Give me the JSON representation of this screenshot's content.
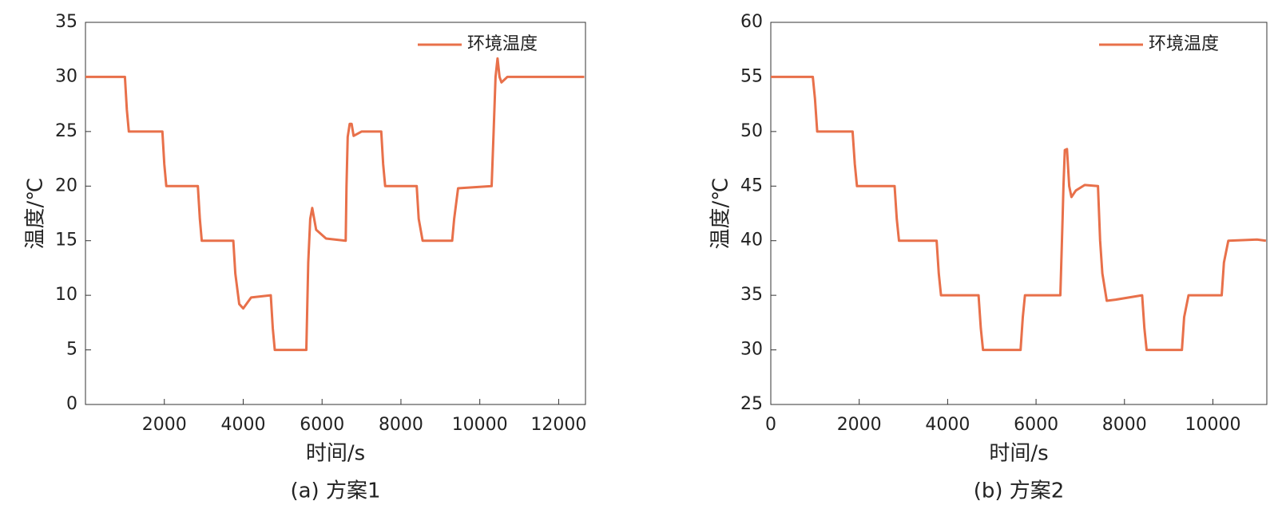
{
  "chart_data": [
    {
      "type": "line",
      "caption": "(a) 方案1",
      "xlabel": "时间/s",
      "ylabel": "温度/℃",
      "xlim": [
        0,
        12680
      ],
      "xticks": [
        2000,
        4000,
        6000,
        8000,
        10000,
        12000
      ],
      "ylim": [
        0,
        35
      ],
      "yticks": [
        0,
        5,
        10,
        15,
        20,
        25,
        30,
        35
      ],
      "legend": "upper right",
      "x": [
        0,
        1000,
        1050,
        1100,
        1950,
        2000,
        2050,
        2850,
        2900,
        2950,
        3750,
        3800,
        3900,
        4000,
        4200,
        4700,
        4750,
        4800,
        5600,
        5650,
        5700,
        5750,
        5850,
        6100,
        6600,
        6620,
        6650,
        6700,
        6750,
        6800,
        7000,
        7500,
        7550,
        7600,
        8400,
        8450,
        8550,
        9300,
        9350,
        9450,
        10300,
        10350,
        10400,
        10450,
        10500,
        10550,
        10700,
        12650
      ],
      "series": [
        {
          "name": "环境温度",
          "color": "#e8704a",
          "values": [
            30,
            30,
            27,
            25,
            25,
            22,
            20,
            20,
            17,
            15,
            15,
            12,
            9.2,
            8.8,
            9.8,
            10,
            7,
            5,
            5,
            13,
            17,
            18,
            16,
            15.2,
            15,
            20,
            24.5,
            25.7,
            25.7,
            24.6,
            25,
            25,
            22,
            20,
            20,
            17,
            15,
            15,
            17,
            19.8,
            20,
            25,
            30,
            31.7,
            30,
            29.5,
            30,
            30
          ]
        }
      ]
    },
    {
      "type": "line",
      "caption": "(b) 方案2",
      "xlabel": "时间/s",
      "ylabel": "温度/℃",
      "xlim": [
        0,
        11220
      ],
      "xticks": [
        0,
        2000,
        4000,
        6000,
        8000,
        10000
      ],
      "ylim": [
        25,
        60
      ],
      "yticks": [
        25,
        30,
        35,
        40,
        45,
        50,
        55,
        60
      ],
      "legend": "upper right",
      "x": [
        0,
        950,
        1000,
        1050,
        1850,
        1900,
        1950,
        2800,
        2850,
        2900,
        3750,
        3800,
        3850,
        4700,
        4750,
        4800,
        5650,
        5700,
        5750,
        5900,
        6550,
        6600,
        6620,
        6650,
        6700,
        6750,
        6800,
        6900,
        7100,
        7400,
        7450,
        7500,
        7600,
        7800,
        8400,
        8450,
        8500,
        9300,
        9350,
        9450,
        10200,
        10250,
        10350,
        11000,
        11200
      ],
      "series": [
        {
          "name": "环境温度",
          "color": "#e8704a",
          "values": [
            55,
            55,
            53,
            50,
            50,
            47,
            45,
            45,
            42,
            40,
            40,
            37,
            35,
            35,
            32,
            30,
            30,
            33,
            35,
            35,
            35,
            42,
            45,
            48.3,
            48.4,
            45,
            44,
            44.6,
            45.1,
            45,
            40,
            37,
            34.5,
            34.6,
            35,
            32,
            30,
            30,
            33,
            35,
            35,
            38,
            40,
            40.1,
            40
          ]
        }
      ]
    }
  ]
}
